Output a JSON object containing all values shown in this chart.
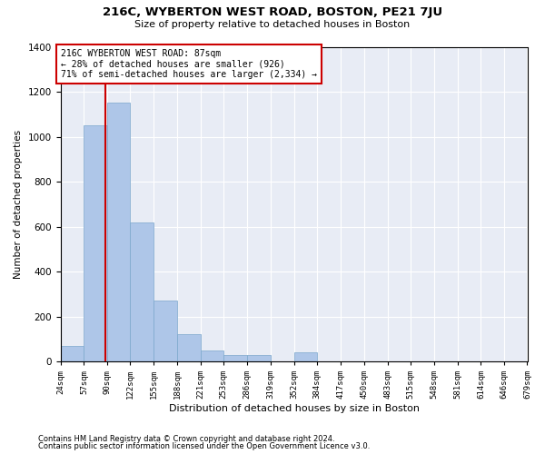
{
  "title": "216C, WYBERTON WEST ROAD, BOSTON, PE21 7JU",
  "subtitle": "Size of property relative to detached houses in Boston",
  "xlabel": "Distribution of detached houses by size in Boston",
  "ylabel": "Number of detached properties",
  "footnote1": "Contains HM Land Registry data © Crown copyright and database right 2024.",
  "footnote2": "Contains public sector information licensed under the Open Government Licence v3.0.",
  "annotation_title": "216C WYBERTON WEST ROAD: 87sqm",
  "annotation_line1": "← 28% of detached houses are smaller (926)",
  "annotation_line2": "71% of semi-detached houses are larger (2,334) →",
  "property_size": 87,
  "bin_edges": [
    24,
    57,
    90,
    122,
    155,
    188,
    221,
    253,
    286,
    319,
    352,
    384,
    417,
    450,
    483,
    515,
    548,
    581,
    614,
    646,
    679
  ],
  "bin_counts": [
    70,
    1050,
    1150,
    620,
    270,
    120,
    50,
    30,
    30,
    0,
    40,
    0,
    0,
    0,
    0,
    0,
    0,
    0,
    0,
    0
  ],
  "bar_color": "#aec6e8",
  "bar_edge_color": "#7ba7cc",
  "vline_color": "#cc0000",
  "annotation_box_color": "#cc0000",
  "background_color": "#e8ecf5",
  "grid_color": "#ffffff",
  "ylim": [
    0,
    1400
  ],
  "yticks": [
    0,
    200,
    400,
    600,
    800,
    1000,
    1200,
    1400
  ]
}
